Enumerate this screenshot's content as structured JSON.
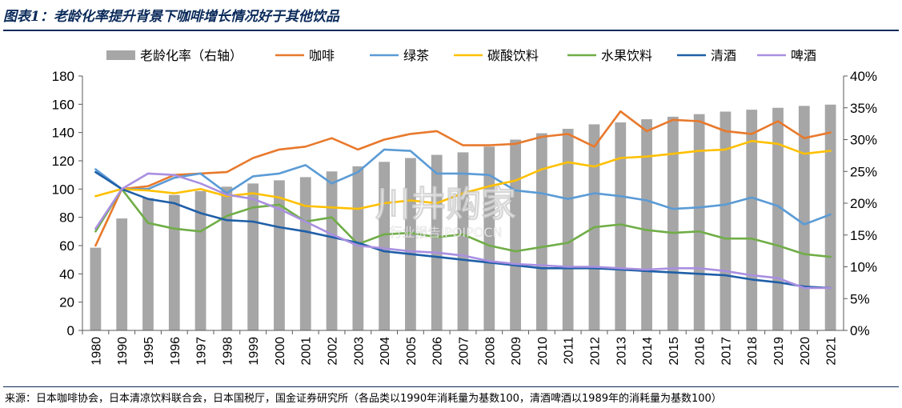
{
  "title": "图表1：老龄化率提升背景下咖啡增长情况好于其他饮品",
  "source": "来源：日本咖啡协会，日本清凉饮料联合会，日本国税厅，国金证券研究所（各品类以1990年消耗量为基数100，清酒啤酒以1989年的消耗量为基数100）",
  "watermark": {
    "main": "川井购家",
    "sub": "行业报告IPOIPOCN"
  },
  "colors": {
    "bar": "#a6a6a6",
    "coffee": "#e8792c",
    "green_tea": "#5b9bd5",
    "soda": "#ffc000",
    "juice": "#70ad47",
    "sake": "#1f5fa8",
    "beer": "#a98fe0"
  },
  "chart_data": {
    "type": "bar+line",
    "categories": [
      "1980",
      "1990",
      "1995",
      "1996",
      "1997",
      "1998",
      "1999",
      "2000",
      "2001",
      "2002",
      "2003",
      "2004",
      "2005",
      "2006",
      "2007",
      "2008",
      "2009",
      "2010",
      "2011",
      "2012",
      "2013",
      "2014",
      "2015",
      "2016",
      "2017",
      "2018",
      "2019",
      "2020",
      "2021"
    ],
    "left_axis": {
      "min": 0,
      "max": 180,
      "ticks": [
        "0",
        "20",
        "40",
        "60",
        "80",
        "100",
        "120",
        "140",
        "160",
        "180"
      ]
    },
    "right_axis": {
      "min": 0,
      "max": 40,
      "ticks": [
        "0%",
        "5%",
        "10%",
        "15%",
        "20%",
        "25%",
        "30%",
        "35%",
        "40%"
      ]
    },
    "bars": {
      "name": "老龄化率（右轴）",
      "axis": "right",
      "values": [
        13.0,
        17.6,
        20.8,
        21.3,
        21.9,
        22.6,
        23.1,
        23.6,
        24.1,
        25.0,
        25.8,
        26.5,
        27.1,
        27.6,
        28.0,
        28.9,
        30.0,
        31.0,
        31.7,
        32.4,
        32.7,
        33.2,
        33.6,
        34.0,
        34.4,
        34.7,
        35.0,
        35.3,
        35.5
      ]
    },
    "series": [
      {
        "name": "咖啡",
        "key": "coffee",
        "values": [
          60,
          100,
          102,
          110,
          111,
          112,
          122,
          128,
          130,
          136,
          128,
          135,
          139,
          141,
          131,
          131,
          132,
          137,
          139,
          130,
          155,
          141,
          149,
          148,
          141,
          139,
          148,
          136,
          140
        ]
      },
      {
        "name": "绿茶",
        "key": "green_tea",
        "values": [
          114,
          100,
          100,
          108,
          111,
          97,
          109,
          111,
          117,
          104,
          112,
          128,
          127,
          111,
          111,
          110,
          99,
          97,
          93,
          97,
          95,
          92,
          86,
          87,
          89,
          94,
          88,
          75,
          82
        ]
      },
      {
        "name": "碳酸饮料",
        "key": "soda",
        "values": [
          95,
          100,
          99,
          97,
          100,
          95,
          97,
          94,
          88,
          87,
          86,
          90,
          92,
          90,
          97,
          102,
          106,
          114,
          119,
          116,
          122,
          123,
          125,
          127,
          128,
          134,
          132,
          125,
          127
        ]
      },
      {
        "name": "水果饮料",
        "key": "juice",
        "values": [
          70,
          100,
          76,
          72,
          70,
          81,
          87,
          89,
          77,
          80,
          61,
          68,
          69,
          66,
          68,
          60,
          56,
          59,
          62,
          73,
          75,
          71,
          69,
          70,
          65,
          65,
          60,
          54,
          52
        ]
      },
      {
        "name": "清酒",
        "key": "sake",
        "values": [
          112,
          100,
          93,
          90,
          83,
          78,
          77,
          73,
          70,
          66,
          62,
          56,
          54,
          52,
          50,
          48,
          46,
          44,
          44,
          44,
          43,
          42,
          41,
          40,
          39,
          36,
          34,
          31,
          30
        ]
      },
      {
        "name": "啤酒",
        "key": "beer",
        "values": [
          72,
          100,
          111,
          110,
          104,
          96,
          93,
          86,
          77,
          68,
          60,
          58,
          56,
          55,
          53,
          49,
          47,
          46,
          45,
          45,
          44,
          43,
          44,
          44,
          42,
          39,
          37,
          30,
          30
        ]
      }
    ]
  }
}
